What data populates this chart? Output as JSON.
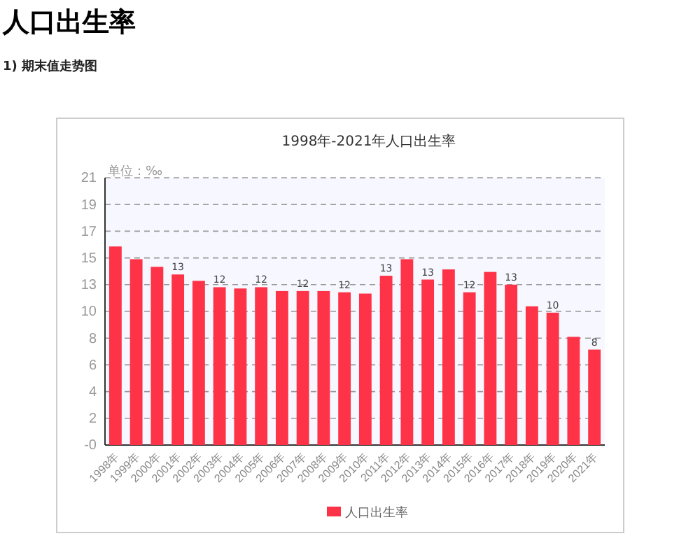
{
  "chart_data": {
    "type": "bar",
    "title": "1998年-2021年人口出生率",
    "annotations": [
      "人口出生率",
      "1) 期末值走势图",
      "单位：‰"
    ],
    "categories": [
      "1998年",
      "1999年",
      "2000年",
      "2001年",
      "2002年",
      "2003年",
      "2004年",
      "2005年",
      "2006年",
      "2007年",
      "2008年",
      "2009年",
      "2010年",
      "2011年",
      "2012年",
      "2013年",
      "2014年",
      "2015年",
      "2016年",
      "2017年",
      "2018年",
      "2019年",
      "2020年",
      "2021年"
    ],
    "series": [
      {
        "name": "人口出生率",
        "color": "#ff3347",
        "values": [
          15.6,
          14.6,
          14,
          13.4,
          12.9,
          12.4,
          12.3,
          12.4,
          12.1,
          12.1,
          12.1,
          12,
          11.9,
          13.3,
          14.6,
          13,
          13.8,
          12,
          13.6,
          12.6,
          10.9,
          10.4,
          8.5,
          7.5
        ],
        "value_labels": [
          null,
          null,
          null,
          "13",
          null,
          "12",
          null,
          "12",
          null,
          "12",
          null,
          "12",
          null,
          "13",
          null,
          "13",
          null,
          "12",
          null,
          "13",
          null,
          "10",
          null,
          "8"
        ]
      }
    ],
    "ylim": [
      0,
      21
    ],
    "yticks": [
      {
        "value": 0,
        "label": "-0"
      },
      {
        "value": 2.1,
        "label": "2"
      },
      {
        "value": 4.2,
        "label": "4"
      },
      {
        "value": 6.3,
        "label": "6"
      },
      {
        "value": 8.4,
        "label": "8"
      },
      {
        "value": 10.5,
        "label": "10"
      },
      {
        "value": 12.6,
        "label": "13"
      },
      {
        "value": 14.7,
        "label": "15"
      },
      {
        "value": 16.8,
        "label": "17"
      },
      {
        "value": 18.9,
        "label": "19"
      },
      {
        "value": 21,
        "label": "21"
      }
    ],
    "grid": "y",
    "legend": "bottom"
  }
}
